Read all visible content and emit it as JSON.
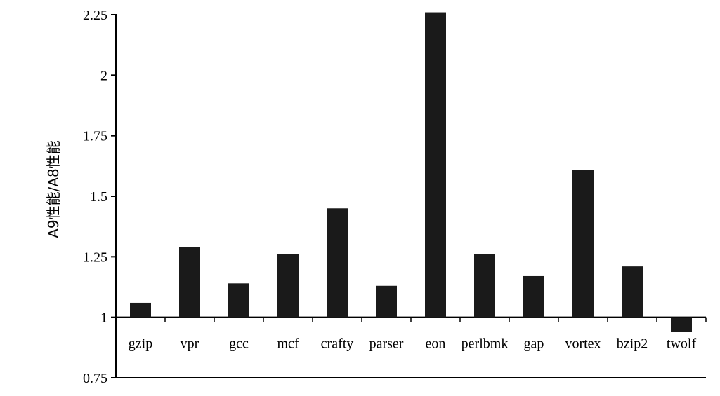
{
  "chart_data": {
    "type": "bar",
    "title": "",
    "xlabel": "",
    "ylabel": "A9性能/A8性能",
    "ylim": [
      0.75,
      2.25
    ],
    "baseline": 1,
    "grid": false,
    "legend": "none",
    "bar_color": "#1a1a1a",
    "yticks": [
      "0.75",
      "1",
      "1.25",
      "1.5",
      "1.75",
      "2",
      "2.25"
    ],
    "categories": [
      "gzip",
      "vpr",
      "gcc",
      "mcf",
      "crafty",
      "parser",
      "eon",
      "perlbmk",
      "gap",
      "vortex",
      "bzip2",
      "twolf"
    ],
    "values": [
      1.06,
      1.29,
      1.14,
      1.26,
      1.45,
      1.13,
      2.26,
      1.26,
      1.17,
      1.61,
      1.21,
      0.94
    ]
  }
}
